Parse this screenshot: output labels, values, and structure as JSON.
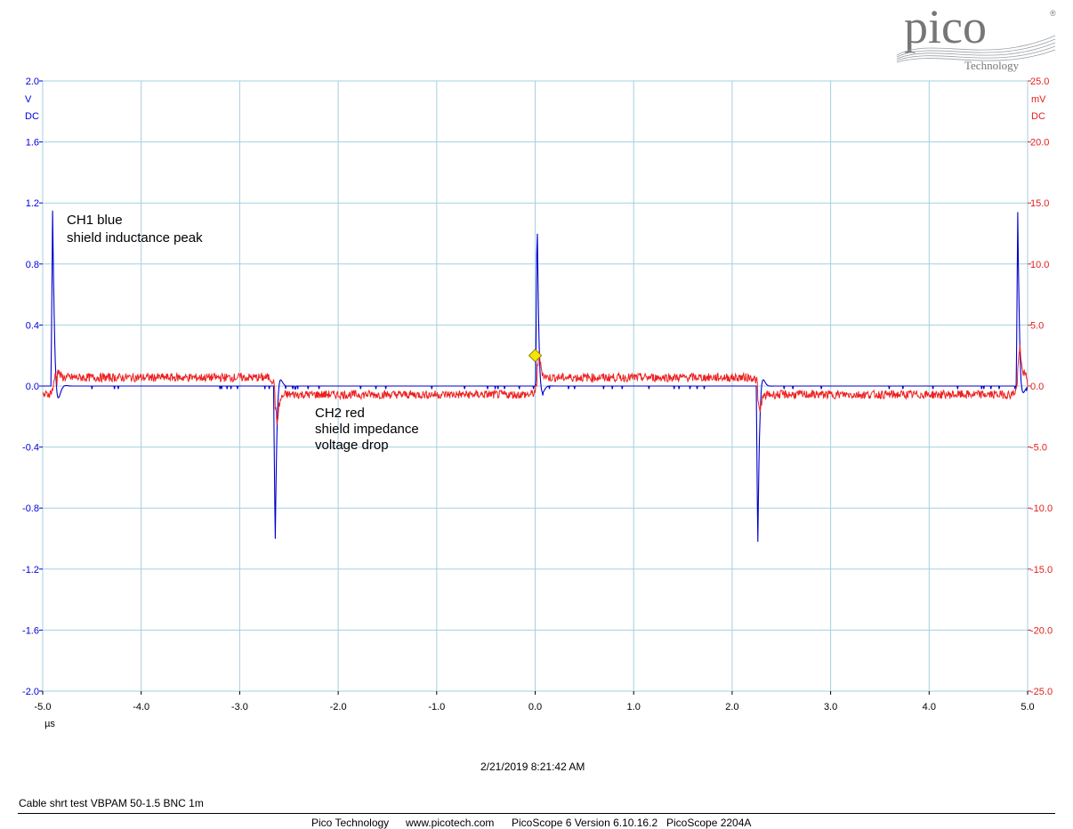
{
  "logo": {
    "brand": "pico",
    "sub": "Technology",
    "registered": "®"
  },
  "chart_data": {
    "type": "line",
    "x": {
      "min": -5.0,
      "max": 5.0,
      "ticks": [
        "-5.0",
        "-4.0",
        "-3.0",
        "-2.0",
        "-1.0",
        "0.0",
        "1.0",
        "2.0",
        "3.0",
        "4.0",
        "5.0"
      ],
      "unit": "µs"
    },
    "y_left": {
      "min": -2.0,
      "max": 2.0,
      "ticks": [
        "2.0",
        "1.6",
        "1.2",
        "0.8",
        "0.4",
        "0.0",
        "-0.4",
        "-0.8",
        "-1.2",
        "-1.6",
        "-2.0"
      ],
      "unit": "V",
      "coupling": "DC",
      "color": "#0000dd"
    },
    "y_right": {
      "min": -25.0,
      "max": 25.0,
      "ticks": [
        "25.0",
        "20.0",
        "15.0",
        "10.0",
        "5.0",
        "0.0",
        "-5.0",
        "-10.0",
        "-15.0",
        "-20.0",
        "-25.0"
      ],
      "unit": "mV",
      "coupling": "DC",
      "color": "#e02020"
    },
    "grid": true,
    "grid_color": "#a6cfe0",
    "series": [
      {
        "name": "CH1 blue",
        "axis": "left",
        "color": "#0000cc",
        "pulses": [
          {
            "x": -4.9,
            "peak": 1.15,
            "decay_us": 0.025
          },
          {
            "x": -2.64,
            "peak": -1.06,
            "decay_us": 0.02
          },
          {
            "x": 0.02,
            "peak": 1.12,
            "decay_us": 0.02
          },
          {
            "x": 2.26,
            "peak": -1.08,
            "decay_us": 0.02
          },
          {
            "x": 4.9,
            "peak": 1.14,
            "decay_us": 0.02
          }
        ],
        "baseline": 0.0
      },
      {
        "name": "CH2 red",
        "axis": "right",
        "color": "#ee2020",
        "levels": [
          {
            "from": -5.0,
            "to": -4.85,
            "value": -0.7
          },
          {
            "from": -4.85,
            "to": -2.64,
            "value": 0.7
          },
          {
            "from": -2.64,
            "to": 0.02,
            "value": -0.7
          },
          {
            "from": 0.02,
            "to": 2.26,
            "value": 0.7
          },
          {
            "from": 2.26,
            "to": 4.9,
            "value": -0.7
          },
          {
            "from": 4.9,
            "to": 5.0,
            "value": 0.7
          }
        ],
        "spikes": [
          {
            "x": -4.87,
            "value": 2.0
          },
          {
            "x": -2.62,
            "value": -2.6
          },
          {
            "x": 0.04,
            "value": 2.2
          },
          {
            "x": 2.28,
            "value": -1.5
          },
          {
            "x": 4.92,
            "value": 2.6
          }
        ]
      }
    ],
    "trigger_marker": {
      "x": 0.0,
      "y": 0.2,
      "color": "#f5e600"
    },
    "annotations": [
      {
        "lines": [
          "CH1 blue",
          " shield inductance peak"
        ]
      },
      {
        "lines": [
          "CH2 red",
          "shield impedance",
          "voltage drop"
        ]
      }
    ]
  },
  "timestamp": "2/21/2019 8:21:42 AM",
  "caption": "Cable shrt test VBPAM 50-1.5 BNC 1m",
  "footer": {
    "company": "Pico Technology",
    "website": "www.picotech.com",
    "software": "PicoScope 6 Version 6.10.16.2",
    "device": "PicoScope 2204A"
  }
}
